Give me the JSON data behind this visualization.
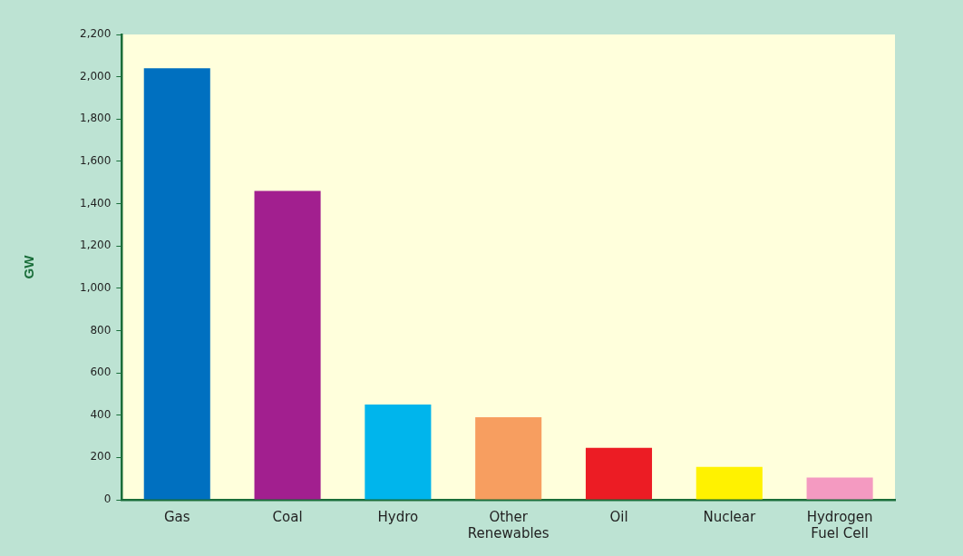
{
  "chart_data": {
    "type": "bar",
    "ylabel": "GW",
    "categories": [
      "Gas",
      "Coal",
      "Hydro",
      "Other Renewables",
      "Oil",
      "Nuclear",
      "Hydrogen Fuel Cell"
    ],
    "values": [
      2040,
      1460,
      450,
      390,
      245,
      155,
      105
    ],
    "colors": [
      "#0070c0",
      "#a21f8f",
      "#00b5ec",
      "#f79e60",
      "#ec1c24",
      "#fff200",
      "#f49ac1"
    ],
    "ylim": [
      0,
      2200
    ],
    "yticks": [
      0,
      200,
      400,
      600,
      800,
      {
        "value": 1000,
        "label": "1,000"
      },
      {
        "value": 1200,
        "label": "1,200"
      },
      {
        "value": 1400,
        "label": "1,400"
      },
      {
        "value": 1600,
        "label": "1,600"
      },
      {
        "value": 1800,
        "label": "1,800"
      },
      {
        "value": 2000,
        "label": "2,000"
      },
      {
        "value": 2200,
        "label": "2,200"
      }
    ],
    "legend": false
  }
}
